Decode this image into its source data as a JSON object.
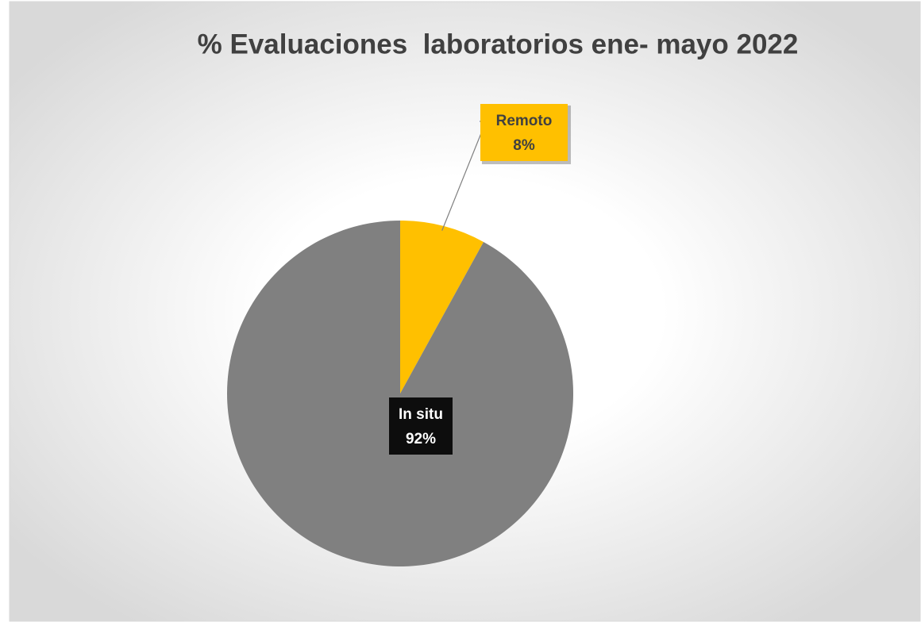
{
  "chart_data": {
    "type": "pie",
    "title": "% Evaluaciones  laboratorios ene- mayo 2022",
    "categories": [
      "Remoto",
      "In situ"
    ],
    "values": [
      8,
      92
    ],
    "value_labels": [
      "8%",
      "92%"
    ],
    "colors": [
      "#FFC000",
      "#808080"
    ]
  }
}
